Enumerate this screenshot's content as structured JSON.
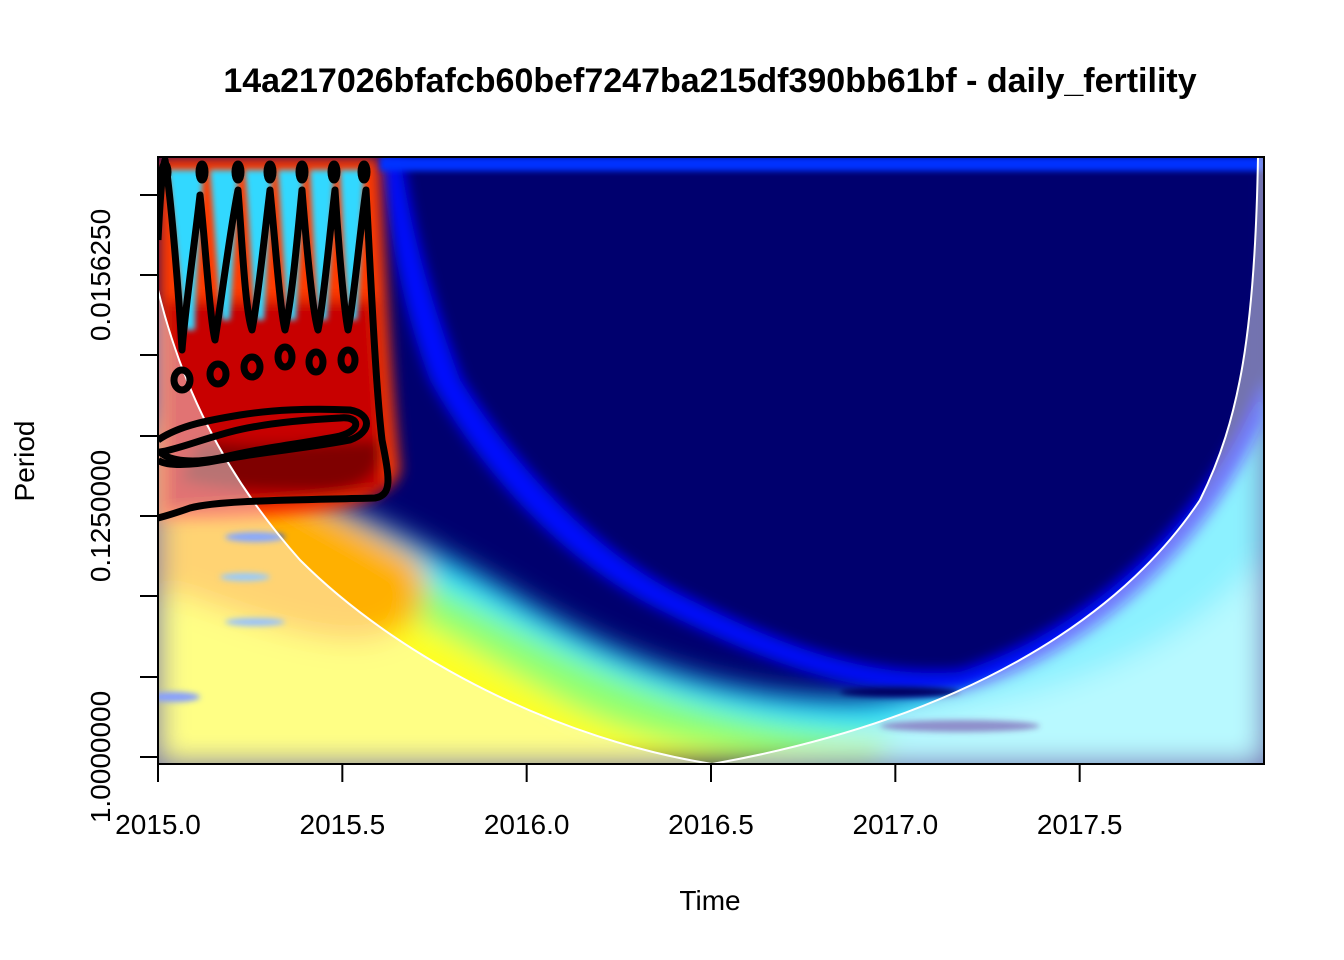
{
  "chart_data": {
    "type": "heatmap",
    "title": "14a217026bfafcb60bef7247ba215df390bb61bf - daily_fertility",
    "xlabel": "Time",
    "ylabel": "Period",
    "x_ticks": [
      "2015.0",
      "2015.5",
      "2016.0",
      "2016.5",
      "2017.0",
      "2017.5"
    ],
    "x_tick_values": [
      2015.0,
      2015.5,
      2016.0,
      2016.5,
      2017.0,
      2017.5
    ],
    "xlim": [
      2015.0,
      2018.0
    ],
    "y_ticks": [
      "1.0000000",
      "0.1250000",
      "0.0156250"
    ],
    "y_scale": "log2",
    "colormap": "jet",
    "grid": false,
    "legend": "none",
    "colors": {
      "low": "#00006e",
      "mid_blue": "#0000ff",
      "cyan": "#00ffff",
      "yellow": "#ffff00",
      "red": "#ff0000",
      "high": "#7f0000",
      "cone_of_influence": "#ffffff",
      "significance_contour": "#000000"
    }
  }
}
